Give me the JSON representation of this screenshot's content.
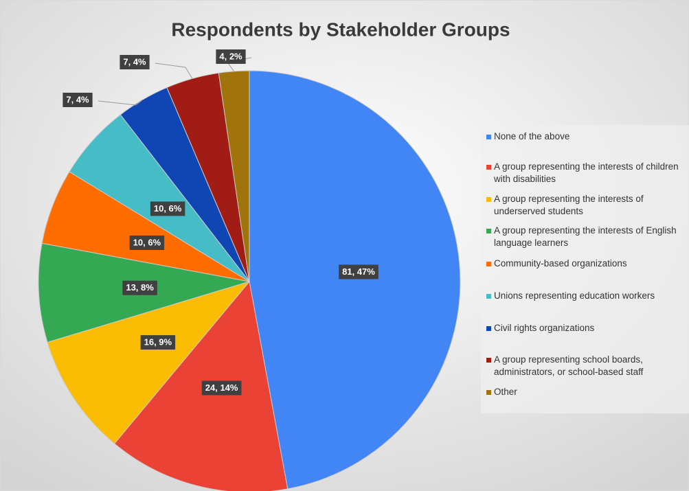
{
  "chart_data": {
    "type": "pie",
    "title": "Respondents by Stakeholder Groups",
    "categories": [
      "None of the above",
      "A group representing the interests of children with disabilities",
      "A group representing the interests of underserved students",
      "A group representing the interests of English language learners",
      "Community-based organizations",
      "Unions representing education workers",
      "Civil rights organizations",
      "A group representing school boards, administrators, or school-based staff",
      "Other"
    ],
    "values": [
      81,
      24,
      16,
      13,
      10,
      10,
      7,
      7,
      4
    ],
    "value_labels": [
      "81, 47%",
      "24, 14%",
      "16, 9%",
      "13, 8%",
      "10, 6%",
      "10, 6%",
      "7, 4%",
      "7, 4%",
      "4, 2%"
    ],
    "colors": [
      "#4285f4",
      "#ea4335",
      "#fbbc04",
      "#34a853",
      "#ff6d01",
      "#46bdc6",
      "#0f46b4",
      "#a11c14",
      "#a0730b"
    ],
    "legend": "right"
  }
}
